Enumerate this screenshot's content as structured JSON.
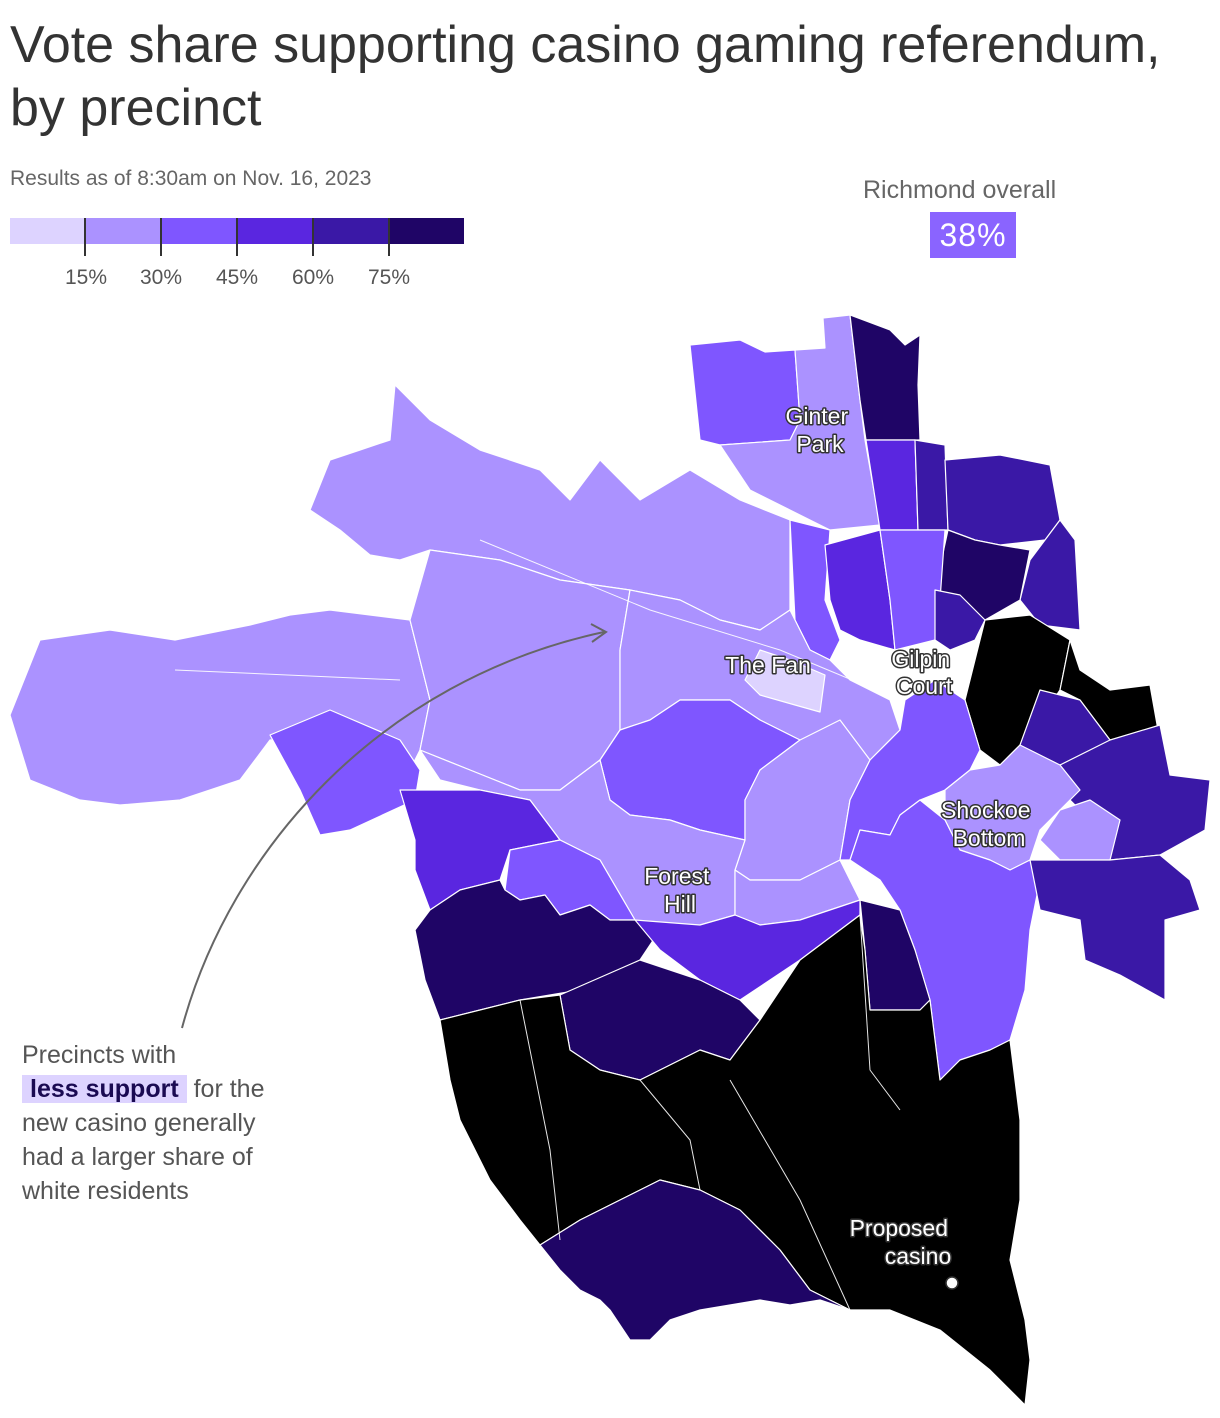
{
  "title": "Vote share supporting casino gaming referendum, by precinct",
  "subtitle": "Results as of 8:30am on Nov. 16, 2023",
  "legend": {
    "ticks": [
      "15%",
      "30%",
      "45%",
      "60%",
      "75%"
    ],
    "colors": [
      "#ddd3ff",
      "#ab92ff",
      "#7f56ff",
      "#5a26e0",
      "#3a18a6",
      "#1f0566"
    ]
  },
  "overall": {
    "label": "Richmond overall",
    "value": "38%",
    "color": "#8a64ff"
  },
  "place_labels": {
    "ginter_park": [
      "Ginter",
      "Park"
    ],
    "the_fan": [
      "The Fan"
    ],
    "gilpin_court": [
      "Gilpin",
      "Court"
    ],
    "shockoe_bottom": [
      "Shockoe",
      "Bottom"
    ],
    "forest_hill": [
      "Forest",
      "Hill"
    ],
    "proposed_casino": [
      "Proposed",
      "casino"
    ]
  },
  "annotation": {
    "line1": "Precincts with",
    "highlight": "less support",
    "line2_rest": " for the",
    "line3": "new casino generally",
    "line4": "had a larger share of",
    "line5": "white residents"
  }
}
